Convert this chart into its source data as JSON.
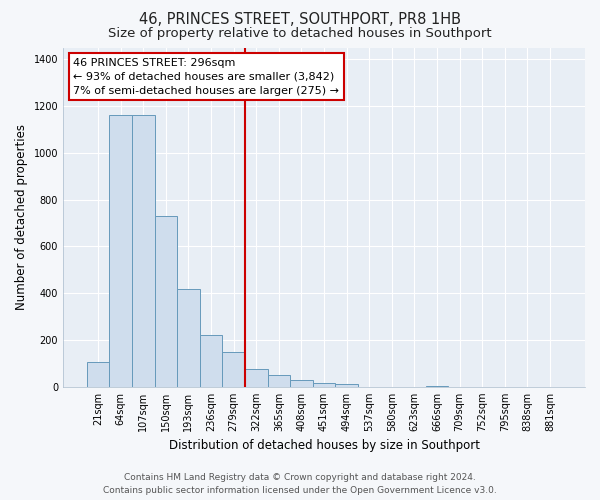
{
  "title": "46, PRINCES STREET, SOUTHPORT, PR8 1HB",
  "subtitle": "Size of property relative to detached houses in Southport",
  "xlabel": "Distribution of detached houses by size in Southport",
  "ylabel": "Number of detached properties",
  "bar_labels": [
    "21sqm",
    "64sqm",
    "107sqm",
    "150sqm",
    "193sqm",
    "236sqm",
    "279sqm",
    "322sqm",
    "365sqm",
    "408sqm",
    "451sqm",
    "494sqm",
    "537sqm",
    "580sqm",
    "623sqm",
    "666sqm",
    "709sqm",
    "752sqm",
    "795sqm",
    "838sqm",
    "881sqm"
  ],
  "bar_values": [
    107,
    1160,
    1160,
    730,
    420,
    220,
    150,
    75,
    50,
    30,
    15,
    12,
    0,
    0,
    0,
    5,
    0,
    0,
    0,
    0,
    0
  ],
  "bar_color": "#cfdded",
  "bar_edge_color": "#6699bb",
  "highlight_line_color": "#cc0000",
  "annotation_line1": "46 PRINCES STREET: 296sqm",
  "annotation_line2": "← 93% of detached houses are smaller (3,842)",
  "annotation_line3": "7% of semi-detached houses are larger (275) →",
  "annotation_box_color": "#ffffff",
  "annotation_box_edge_color": "#cc0000",
  "ylim": [
    0,
    1450
  ],
  "yticks": [
    0,
    200,
    400,
    600,
    800,
    1000,
    1200,
    1400
  ],
  "footer_line1": "Contains HM Land Registry data © Crown copyright and database right 2024.",
  "footer_line2": "Contains public sector information licensed under the Open Government Licence v3.0.",
  "plot_bg_color": "#e8eef5",
  "fig_bg_color": "#f5f7fa",
  "grid_color": "#ffffff",
  "title_fontsize": 10.5,
  "subtitle_fontsize": 9.5,
  "axis_label_fontsize": 8.5,
  "tick_fontsize": 7,
  "annotation_fontsize": 8,
  "footer_fontsize": 6.5,
  "highlight_line_index": 7
}
